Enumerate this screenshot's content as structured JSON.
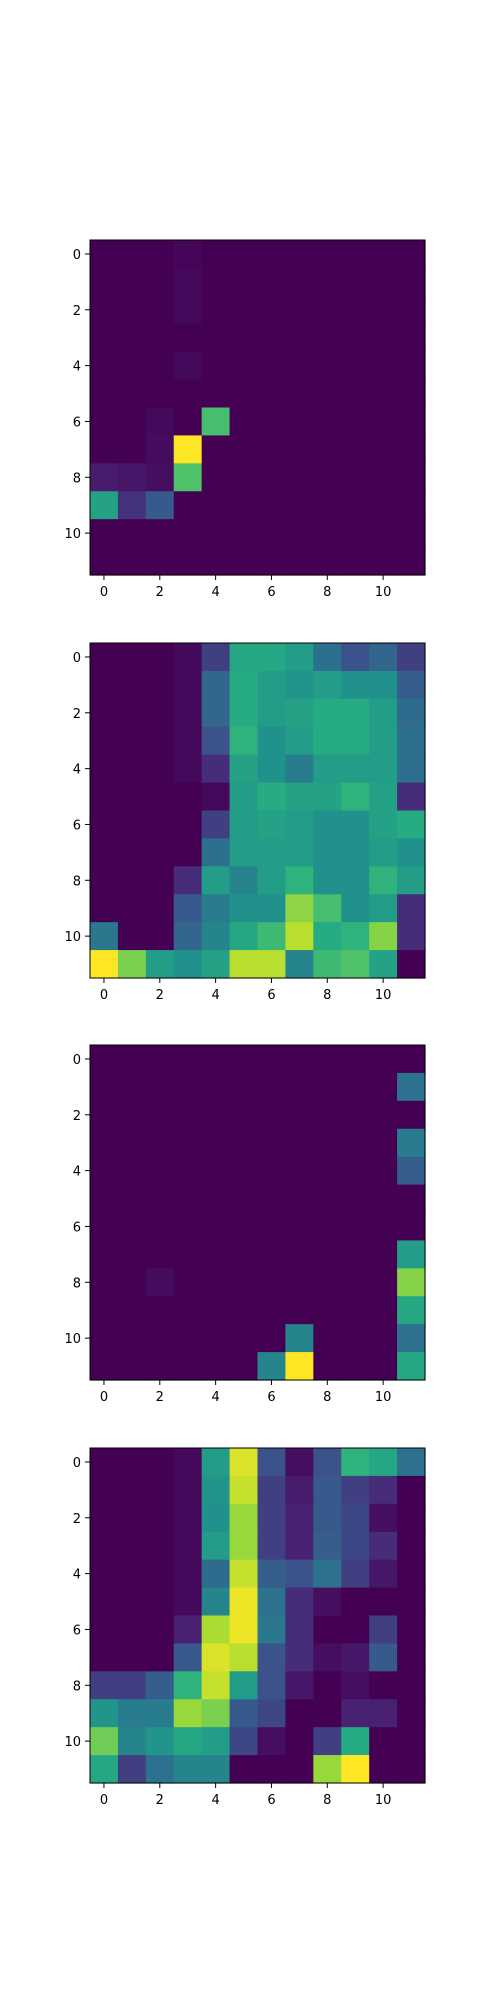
{
  "colormap": "viridis",
  "chart_data": [
    {
      "type": "heatmap",
      "title": "",
      "xlabel": "",
      "ylabel": "",
      "xlim": [
        -0.5,
        11.5
      ],
      "ylim": [
        11.5,
        -0.5
      ],
      "xticks": [
        0,
        2,
        4,
        6,
        8,
        10
      ],
      "yticks": [
        0,
        2,
        4,
        6,
        8,
        10
      ],
      "grid": false,
      "values": [
        [
          0,
          0,
          0,
          0.02,
          0,
          0,
          0,
          0,
          0,
          0,
          0,
          0
        ],
        [
          0,
          0,
          0,
          0.03,
          0,
          0,
          0,
          0,
          0,
          0,
          0,
          0
        ],
        [
          0,
          0,
          0,
          0.03,
          0,
          0,
          0,
          0,
          0,
          0,
          0,
          0
        ],
        [
          0,
          0,
          0,
          0,
          0,
          0,
          0,
          0,
          0,
          0,
          0,
          0
        ],
        [
          0,
          0,
          0,
          0.03,
          0,
          0,
          0,
          0,
          0,
          0,
          0,
          0
        ],
        [
          0,
          0,
          0,
          0,
          0,
          0,
          0,
          0,
          0,
          0,
          0,
          0
        ],
        [
          0,
          0,
          0.03,
          0,
          0.7,
          0,
          0,
          0,
          0,
          0,
          0,
          0
        ],
        [
          0,
          0,
          0.04,
          1.0,
          0,
          0,
          0,
          0,
          0,
          0,
          0,
          0
        ],
        [
          0.1,
          0.08,
          0.05,
          0.72,
          0,
          0,
          0,
          0,
          0,
          0,
          0,
          0
        ],
        [
          0.58,
          0.17,
          0.28,
          0,
          0,
          0,
          0,
          0,
          0,
          0,
          0,
          0
        ],
        [
          0,
          0,
          0,
          0,
          0,
          0,
          0,
          0,
          0,
          0,
          0,
          0
        ],
        [
          0,
          0,
          0,
          0,
          0,
          0,
          0,
          0,
          0,
          0,
          0,
          0
        ]
      ]
    },
    {
      "type": "heatmap",
      "title": "",
      "xlabel": "",
      "ylabel": "",
      "xlim": [
        -0.5,
        11.5
      ],
      "ylim": [
        11.5,
        -0.5
      ],
      "xticks": [
        0,
        2,
        4,
        6,
        8,
        10
      ],
      "yticks": [
        0,
        2,
        4,
        6,
        8,
        10
      ],
      "grid": false,
      "values": [
        [
          0,
          0,
          0,
          0.03,
          0.2,
          0.6,
          0.6,
          0.55,
          0.37,
          0.25,
          0.33,
          0.2
        ],
        [
          0,
          0,
          0,
          0.03,
          0.33,
          0.62,
          0.55,
          0.52,
          0.55,
          0.5,
          0.5,
          0.3
        ],
        [
          0,
          0,
          0,
          0.03,
          0.33,
          0.62,
          0.55,
          0.58,
          0.62,
          0.62,
          0.55,
          0.35
        ],
        [
          0,
          0,
          0,
          0.03,
          0.25,
          0.65,
          0.5,
          0.55,
          0.62,
          0.62,
          0.55,
          0.37
        ],
        [
          0,
          0,
          0,
          0.03,
          0.15,
          0.58,
          0.5,
          0.42,
          0.55,
          0.55,
          0.55,
          0.37
        ],
        [
          0,
          0,
          0,
          0.0,
          0.03,
          0.55,
          0.62,
          0.58,
          0.58,
          0.65,
          0.58,
          0.15
        ],
        [
          0,
          0,
          0,
          0.0,
          0.2,
          0.55,
          0.58,
          0.55,
          0.5,
          0.5,
          0.58,
          0.62
        ],
        [
          0,
          0,
          0,
          0.0,
          0.37,
          0.55,
          0.55,
          0.55,
          0.5,
          0.5,
          0.55,
          0.5
        ],
        [
          0,
          0,
          0,
          0.15,
          0.55,
          0.45,
          0.55,
          0.65,
          0.5,
          0.5,
          0.65,
          0.55
        ],
        [
          0,
          0,
          0,
          0.28,
          0.42,
          0.5,
          0.5,
          0.83,
          0.7,
          0.5,
          0.55,
          0.15
        ],
        [
          0.4,
          0,
          0,
          0.33,
          0.45,
          0.6,
          0.68,
          0.9,
          0.62,
          0.65,
          0.82,
          0.15
        ],
        [
          1.0,
          0.8,
          0.55,
          0.5,
          0.58,
          0.9,
          0.9,
          0.45,
          0.68,
          0.72,
          0.58,
          0.0
        ]
      ]
    },
    {
      "type": "heatmap",
      "title": "",
      "xlabel": "",
      "ylabel": "",
      "xlim": [
        -0.5,
        11.5
      ],
      "ylim": [
        11.5,
        -0.5
      ],
      "xticks": [
        0,
        2,
        4,
        6,
        8,
        10
      ],
      "yticks": [
        0,
        2,
        4,
        6,
        8,
        10
      ],
      "grid": false,
      "values": [
        [
          0,
          0,
          0,
          0,
          0,
          0,
          0,
          0,
          0,
          0,
          0,
          0
        ],
        [
          0,
          0,
          0,
          0,
          0,
          0,
          0,
          0,
          0,
          0,
          0,
          0.38
        ],
        [
          0,
          0,
          0,
          0,
          0,
          0,
          0,
          0,
          0,
          0,
          0,
          0
        ],
        [
          0,
          0,
          0,
          0,
          0,
          0,
          0,
          0,
          0,
          0,
          0,
          0.42
        ],
        [
          0,
          0,
          0,
          0,
          0,
          0,
          0,
          0,
          0,
          0,
          0,
          0.3
        ],
        [
          0,
          0,
          0,
          0,
          0,
          0,
          0,
          0,
          0,
          0,
          0,
          0
        ],
        [
          0,
          0,
          0,
          0,
          0,
          0,
          0,
          0,
          0,
          0,
          0,
          0
        ],
        [
          0,
          0,
          0,
          0,
          0,
          0,
          0,
          0,
          0,
          0,
          0,
          0.55
        ],
        [
          0,
          0,
          0.04,
          0,
          0,
          0,
          0,
          0,
          0,
          0,
          0,
          0.82
        ],
        [
          0,
          0,
          0,
          0,
          0,
          0,
          0,
          0,
          0,
          0,
          0,
          0.6
        ],
        [
          0,
          0,
          0,
          0,
          0,
          0,
          0,
          0.45,
          0,
          0,
          0,
          0.38
        ],
        [
          0,
          0,
          0,
          0,
          0,
          0,
          0.45,
          1.0,
          0,
          0,
          0,
          0.6
        ]
      ]
    },
    {
      "type": "heatmap",
      "title": "",
      "xlabel": "",
      "ylabel": "",
      "xlim": [
        -0.5,
        11.5
      ],
      "ylim": [
        11.5,
        -0.5
      ],
      "xticks": [
        0,
        2,
        4,
        6,
        8,
        10
      ],
      "yticks": [
        0,
        2,
        4,
        6,
        8,
        10
      ],
      "grid": false,
      "values": [
        [
          0,
          0,
          0,
          0.03,
          0.55,
          0.95,
          0.25,
          0.05,
          0.25,
          0.65,
          0.6,
          0.38
        ],
        [
          0,
          0,
          0,
          0.03,
          0.52,
          0.92,
          0.2,
          0.1,
          0.28,
          0.2,
          0.15,
          0
        ],
        [
          0,
          0,
          0,
          0.03,
          0.5,
          0.85,
          0.2,
          0.12,
          0.28,
          0.22,
          0.05,
          0
        ],
        [
          0,
          0,
          0,
          0.03,
          0.55,
          0.85,
          0.2,
          0.12,
          0.3,
          0.22,
          0.15,
          0
        ],
        [
          0,
          0,
          0,
          0.03,
          0.35,
          0.92,
          0.3,
          0.25,
          0.38,
          0.2,
          0.08,
          0
        ],
        [
          0,
          0,
          0,
          0.03,
          0.45,
          0.98,
          0.38,
          0.15,
          0.05,
          0,
          0,
          0
        ],
        [
          0,
          0,
          0,
          0.12,
          0.88,
          0.98,
          0.4,
          0.15,
          0,
          0,
          0.2,
          0
        ],
        [
          0,
          0,
          0,
          0.28,
          0.95,
          0.9,
          0.25,
          0.15,
          0.05,
          0.08,
          0.28,
          0
        ],
        [
          0.2,
          0.2,
          0.3,
          0.65,
          0.92,
          0.55,
          0.25,
          0.08,
          0,
          0.05,
          0,
          0
        ],
        [
          0.52,
          0.42,
          0.42,
          0.85,
          0.8,
          0.28,
          0.22,
          0,
          0,
          0.12,
          0.12,
          0
        ],
        [
          0.78,
          0.45,
          0.52,
          0.6,
          0.55,
          0.22,
          0.05,
          0,
          0.2,
          0.62,
          0,
          0
        ],
        [
          0.6,
          0.2,
          0.38,
          0.45,
          0.45,
          0,
          0,
          0,
          0.85,
          1.0,
          0,
          0
        ]
      ]
    }
  ]
}
